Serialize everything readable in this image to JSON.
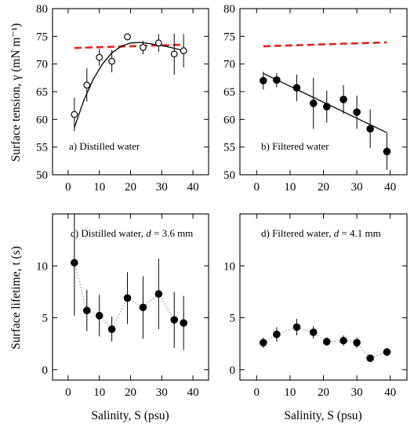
{
  "colors": {
    "red_dash": "#e8201c",
    "black": "#000000",
    "dotted_gray": "#8a8a8a"
  },
  "chart_data": [
    {
      "panel": "a",
      "type": "scatter",
      "annotation": "a) Distilled water",
      "ylabel": "Surface tension, γ (mN m⁻¹)",
      "xlim": [
        -5,
        45
      ],
      "ylim": [
        50,
        80
      ],
      "xticks": [
        0,
        10,
        20,
        30,
        40
      ],
      "yticks": [
        50,
        55,
        60,
        65,
        70,
        75,
        80
      ],
      "marker": "open-circle",
      "series": [
        {
          "x": [
            2,
            6,
            10,
            14,
            19,
            24,
            29,
            34,
            37
          ],
          "y": [
            60.9,
            66.2,
            71.2,
            70.5,
            74.9,
            73.0,
            73.8,
            71.8,
            72.4
          ],
          "err": [
            3.0,
            3.0,
            1.5,
            2.0,
            0.5,
            1.2,
            1.6,
            3.7,
            3.0
          ]
        }
      ],
      "fit_curve": {
        "x": [
          2,
          5,
          8,
          11,
          14,
          17,
          20,
          23,
          26,
          29,
          32,
          35,
          37
        ],
        "y": [
          58.5,
          63.4,
          67.2,
          70.0,
          72.0,
          73.2,
          73.8,
          73.9,
          73.7,
          73.4,
          73.1,
          72.7,
          72.4
        ]
      },
      "reference_line": {
        "x": [
          2,
          37
        ],
        "y": [
          72.9,
          73.5
        ]
      },
      "ticklabels_y": [
        "50",
        "55",
        "60",
        "65",
        "70",
        "75",
        "80"
      ],
      "ticklabels_x": [
        "0",
        "10",
        "20",
        "30",
        "40"
      ]
    },
    {
      "panel": "b",
      "type": "scatter",
      "annotation": "b) Filtered water",
      "xlim": [
        -5,
        45
      ],
      "ylim": [
        50,
        80
      ],
      "xticks": [
        0,
        10,
        20,
        30,
        40
      ],
      "yticks": [
        50,
        55,
        60,
        65,
        70,
        75,
        80
      ],
      "marker": "filled-circle",
      "series": [
        {
          "x": [
            2,
            6,
            12,
            17,
            21,
            26,
            30,
            34,
            39
          ],
          "y": [
            67.0,
            67.1,
            65.7,
            62.9,
            62.3,
            63.6,
            61.3,
            58.3,
            54.2
          ],
          "err": [
            1.6,
            1.3,
            2.4,
            4.6,
            2.9,
            2.6,
            3.0,
            3.5,
            3.3
          ]
        }
      ],
      "fit_line": {
        "x": [
          2,
          39
        ],
        "y": [
          68.3,
          57.6
        ]
      },
      "reference_line": {
        "x": [
          2,
          39
        ],
        "y": [
          73.2,
          73.9
        ]
      },
      "ticklabels_y": [
        "50",
        "55",
        "60",
        "65",
        "70",
        "75",
        "80"
      ],
      "ticklabels_x": [
        "0",
        "10",
        "20",
        "30",
        "40"
      ]
    },
    {
      "panel": "c",
      "type": "line",
      "annotation_prefix": "c) Distilled water, ",
      "annotation_var": "d",
      "annotation_value": " = 3.6 mm",
      "ylabel": "Surface lifetime, t (s)",
      "xlabel": "Salinity, S (psu)",
      "xlim": [
        -5,
        45
      ],
      "ylim": [
        -1,
        15
      ],
      "xticks": [
        0,
        10,
        20,
        30,
        40
      ],
      "yticks": [
        0,
        5,
        10,
        15
      ],
      "marker": "filled-circle",
      "series": [
        {
          "x": [
            2,
            6,
            10,
            14,
            19,
            24,
            29,
            34,
            37
          ],
          "y": [
            10.3,
            5.7,
            5.2,
            3.9,
            6.9,
            6.0,
            7.3,
            4.8,
            4.5
          ],
          "err": [
            5.1,
            2.0,
            2.0,
            1.2,
            2.5,
            3.0,
            3.4,
            2.7,
            2.6
          ]
        }
      ],
      "ticklabels_y": [
        "0",
        "5",
        "10"
      ],
      "ticklabels_x": [
        "0",
        "10",
        "20",
        "30",
        "40"
      ]
    },
    {
      "panel": "d",
      "type": "line",
      "annotation_prefix": "d) Filtered water, ",
      "annotation_var": "d",
      "annotation_value": " = 4.1 mm",
      "xlabel": "Salinity, S (psu)",
      "xlim": [
        -5,
        45
      ],
      "ylim": [
        -1,
        15
      ],
      "xticks": [
        0,
        10,
        20,
        30,
        40
      ],
      "yticks": [
        0,
        5,
        10,
        15
      ],
      "marker": "filled-circle",
      "series": [
        {
          "x": [
            2,
            6,
            12,
            17,
            21,
            26,
            30,
            34,
            39
          ],
          "y": [
            2.6,
            3.4,
            4.1,
            3.6,
            2.7,
            2.8,
            2.6,
            1.1,
            1.7
          ],
          "err": [
            0.5,
            0.7,
            0.8,
            0.6,
            0.4,
            0.5,
            0.5,
            0.2,
            0.4
          ]
        }
      ],
      "ticklabels_y": [
        "0",
        "5",
        "10"
      ],
      "ticklabels_x": [
        "0",
        "10",
        "20",
        "30",
        "40"
      ]
    }
  ]
}
